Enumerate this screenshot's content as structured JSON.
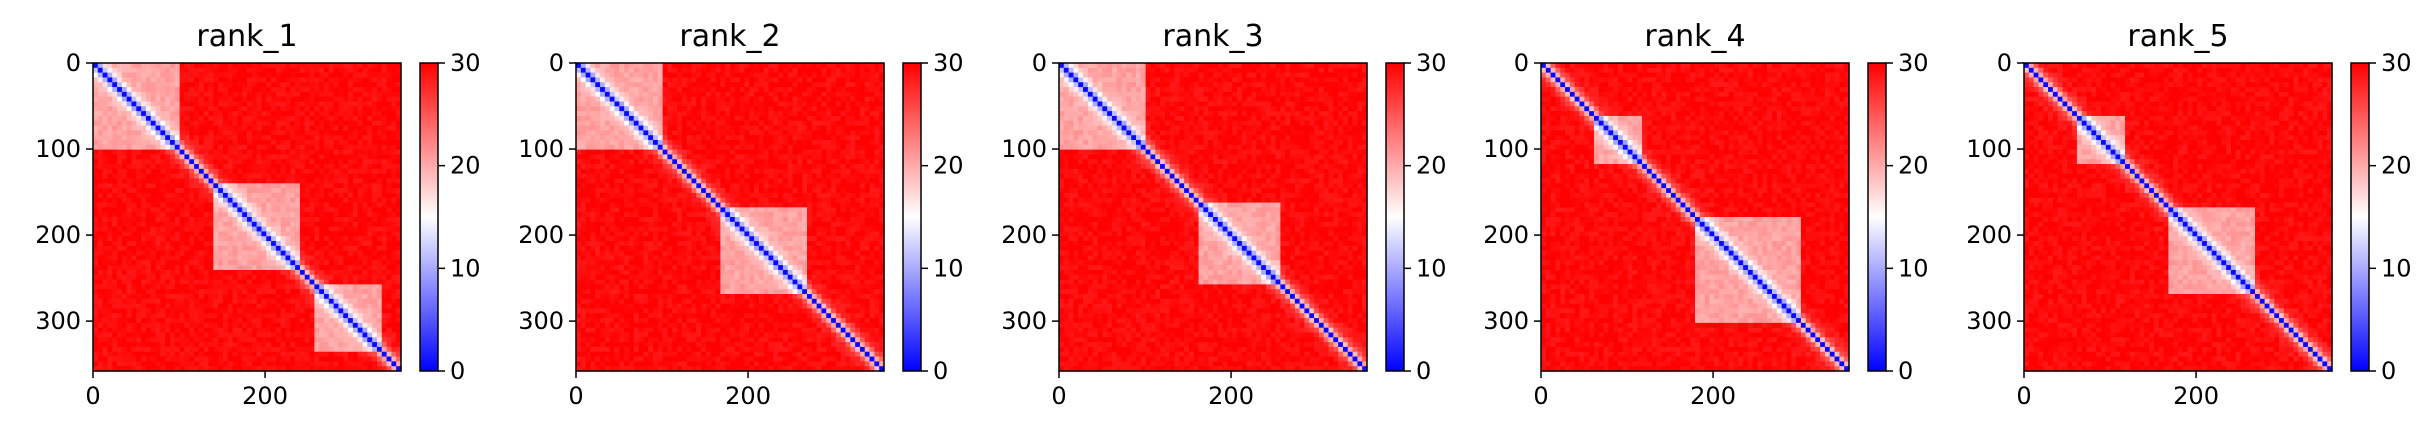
{
  "chart_data": [
    {
      "type": "heatmap",
      "title": "rank_1",
      "x_ticks": [
        0,
        200
      ],
      "y_ticks": [
        0,
        100,
        200,
        300
      ],
      "x_range": [
        0,
        358
      ],
      "y_range": [
        0,
        358
      ],
      "colorbar": {
        "ticks": [
          0,
          10,
          20,
          30
        ],
        "range": [
          0,
          30
        ],
        "colormap": "bwr",
        "low": "#0000ff",
        "mid": "#ffffff",
        "high": "#ff0000"
      },
      "low_error_blocks": [
        [
          0,
          100,
          0,
          100
        ],
        [
          140,
          240,
          140,
          240
        ],
        [
          255,
          335,
          255,
          335
        ]
      ]
    },
    {
      "type": "heatmap",
      "title": "rank_2",
      "x_ticks": [
        0,
        200
      ],
      "y_ticks": [
        0,
        100,
        200,
        300
      ],
      "x_range": [
        0,
        358
      ],
      "y_range": [
        0,
        358
      ],
      "colorbar": {
        "ticks": [
          0,
          10,
          20,
          30
        ],
        "range": [
          0,
          30
        ],
        "colormap": "bwr",
        "low": "#0000ff",
        "mid": "#ffffff",
        "high": "#ff0000"
      },
      "low_error_blocks": [
        [
          0,
          100,
          0,
          100
        ],
        [
          170,
          270,
          170,
          270
        ]
      ]
    },
    {
      "type": "heatmap",
      "title": "rank_3",
      "x_ticks": [
        0,
        200
      ],
      "y_ticks": [
        0,
        100,
        200,
        300
      ],
      "x_range": [
        0,
        358
      ],
      "y_range": [
        0,
        358
      ],
      "colorbar": {
        "ticks": [
          0,
          10,
          20,
          30
        ],
        "range": [
          0,
          30
        ],
        "colormap": "bwr",
        "low": "#0000ff",
        "mid": "#ffffff",
        "high": "#ff0000"
      },
      "low_error_blocks": [
        [
          0,
          100,
          0,
          100
        ],
        [
          160,
          260,
          160,
          260
        ]
      ]
    },
    {
      "type": "heatmap",
      "title": "rank_4",
      "x_ticks": [
        0,
        200
      ],
      "y_ticks": [
        0,
        100,
        200,
        300
      ],
      "x_range": [
        0,
        358
      ],
      "y_range": [
        0,
        358
      ],
      "colorbar": {
        "ticks": [
          0,
          10,
          20,
          30
        ],
        "range": [
          0,
          30
        ],
        "colormap": "bwr",
        "low": "#0000ff",
        "mid": "#ffffff",
        "high": "#ff0000"
      },
      "low_error_blocks": [
        [
          60,
          120,
          60,
          120
        ],
        [
          180,
          300,
          180,
          300
        ]
      ]
    },
    {
      "type": "heatmap",
      "title": "rank_5",
      "x_ticks": [
        0,
        200
      ],
      "y_ticks": [
        0,
        100,
        200,
        300
      ],
      "x_range": [
        0,
        358
      ],
      "y_range": [
        0,
        358
      ],
      "colorbar": {
        "ticks": [
          0,
          10,
          20,
          30
        ],
        "range": [
          0,
          30
        ],
        "colormap": "bwr",
        "low": "#0000ff",
        "mid": "#ffffff",
        "high": "#ff0000"
      },
      "low_error_blocks": [
        [
          60,
          120,
          60,
          120
        ],
        [
          170,
          270,
          170,
          270
        ]
      ]
    }
  ]
}
